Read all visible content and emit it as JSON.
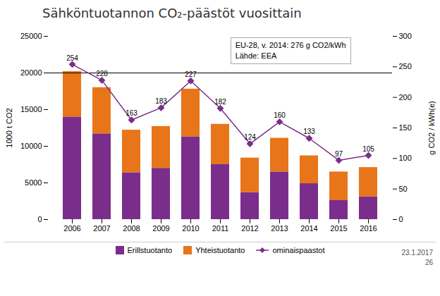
{
  "chart_data": {
    "type": "bar",
    "title": "Sähköntuotannon CO₂-päästöt vuosittain",
    "categories": [
      "2006",
      "2007",
      "2008",
      "2009",
      "2010",
      "2011",
      "2012",
      "2013",
      "2014",
      "2015",
      "2016"
    ],
    "stacked": true,
    "series": [
      {
        "name": "Erillstuotanto",
        "color": "#7B2D8B",
        "values": [
          14000,
          11700,
          6400,
          7000,
          11300,
          7500,
          3700,
          6500,
          4900,
          2600,
          3100
        ]
      },
      {
        "name": "Yhteistuotanto",
        "color": "#E8751A",
        "values": [
          6200,
          6300,
          5800,
          5700,
          6500,
          5500,
          4700,
          4600,
          3800,
          3900,
          4000
        ]
      },
      {
        "name": "ominaispaastot",
        "type": "line",
        "axis": "y2",
        "color": "#7B2D8B",
        "marker": "diamond",
        "data_labels": true,
        "values": [
          254,
          228,
          163,
          183,
          227,
          182,
          124,
          160,
          133,
          97,
          105
        ]
      }
    ],
    "ylabel": "1000 t CO2",
    "y2label": "g CO2 / kWh(e)",
    "ylim": [
      0,
      25000
    ],
    "yticks": [
      0,
      5000,
      10000,
      15000,
      20000,
      25000
    ],
    "y2lim": [
      0,
      300
    ],
    "y2ticks": [
      0,
      50,
      100,
      150,
      200,
      250,
      300
    ],
    "hline": 20000,
    "annotation": "EU-28, v. 2014: 276 g CO2/kWh\nLähde: EEA",
    "footnotes": [
      "23.1.2017",
      "26"
    ],
    "grid": false,
    "legend": "bottom"
  }
}
